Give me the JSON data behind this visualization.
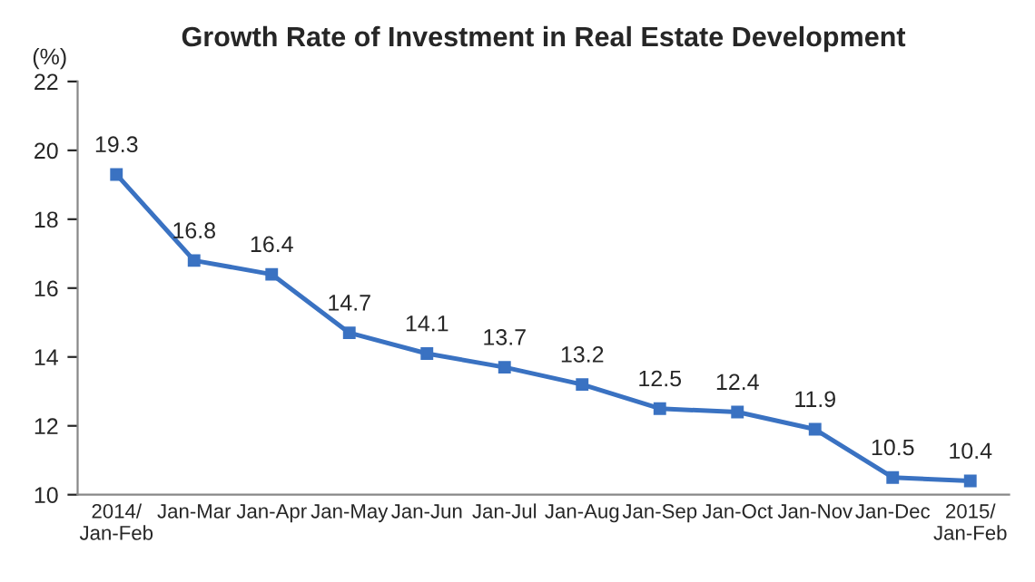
{
  "chart_data": {
    "type": "line",
    "title": "Growth Rate of Investment in Real Estate Development",
    "ylabel": "(%)",
    "categories": [
      "2014/\nJan-Feb",
      "Jan-Mar",
      "Jan-Apr",
      "Jan-May",
      "Jan-Jun",
      "Jan-Jul",
      "Jan-Aug",
      "Jan-Sep",
      "Jan-Oct",
      "Jan-Nov",
      "Jan-Dec",
      "2015/\nJan-Feb"
    ],
    "series": [
      {
        "color": "#3a72c2",
        "values": [
          19.3,
          16.8,
          16.4,
          14.7,
          14.1,
          13.7,
          13.2,
          12.5,
          12.4,
          11.9,
          10.5,
          10.4
        ]
      }
    ],
    "ylim": [
      10,
      22
    ],
    "yticks": [
      10,
      12,
      14,
      16,
      18,
      20,
      22
    ],
    "marker": "square",
    "line_style": "solid",
    "data_labels": true,
    "grid": false,
    "legend": false
  }
}
